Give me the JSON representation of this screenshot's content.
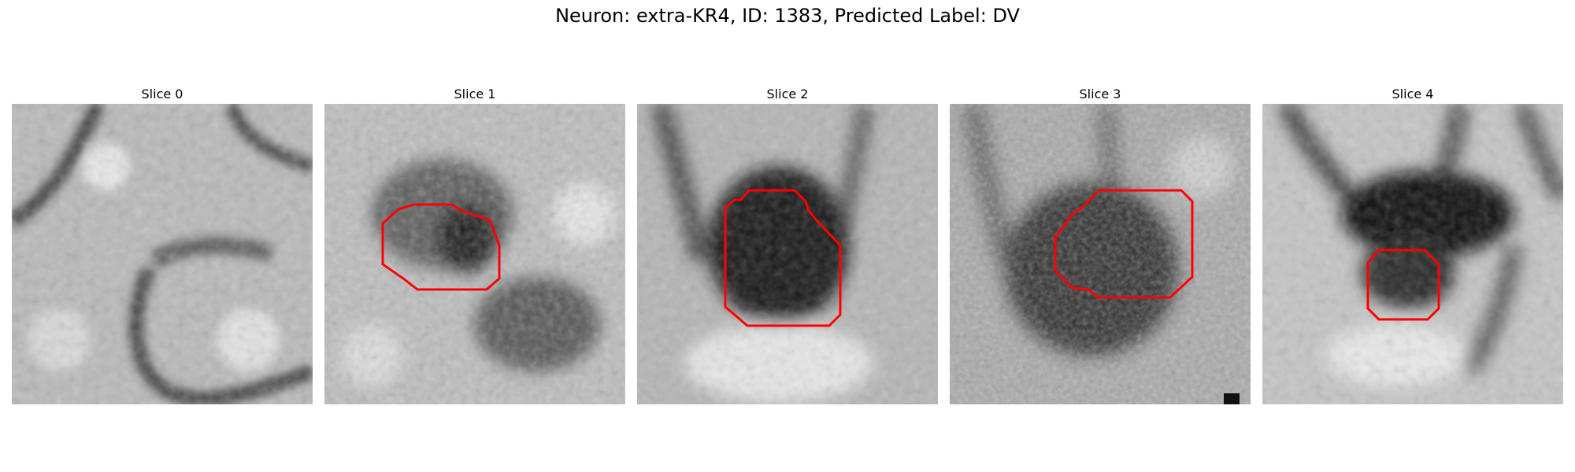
{
  "title": "Neuron: extra-KR4, ID: 1383, Predicted Label: DV",
  "panels": [
    {
      "label": "Slice 0",
      "has_contour": false
    },
    {
      "label": "Slice 1",
      "has_contour": true
    },
    {
      "label": "Slice 2",
      "has_contour": true
    },
    {
      "label": "Slice 3",
      "has_contour": true
    },
    {
      "label": "Slice 4",
      "has_contour": true
    }
  ],
  "colors": {
    "contour": "#ff0000",
    "background": "#ffffff"
  },
  "colormap": "gray"
}
